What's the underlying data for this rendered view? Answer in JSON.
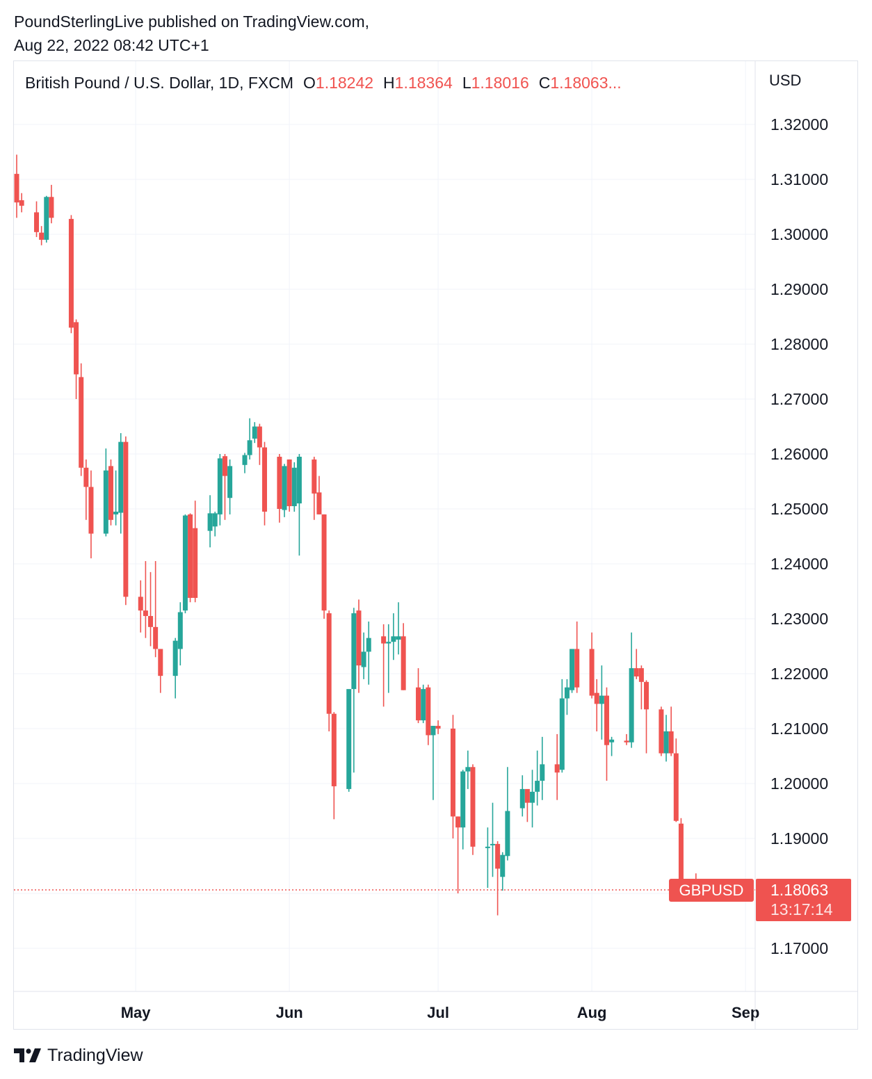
{
  "header": {
    "published_line": "PoundSterlingLive published on TradingView.com,",
    "date_line": "Aug 22, 2022 08:42 UTC+1"
  },
  "legend": {
    "symbol": "British Pound / U.S. Dollar, 1D, FXCM",
    "open_label": "O",
    "open": "1.18242",
    "high_label": "H",
    "high": "1.18364",
    "low_label": "L",
    "low": "1.18016",
    "close_label": "C",
    "close": "1.18063..."
  },
  "price_tag": {
    "ticker": "GBPUSD",
    "price": "1.18063",
    "countdown": "13:17:14"
  },
  "footer": {
    "brand": "TradingView"
  },
  "colors": {
    "up": "#26a69a",
    "down": "#ef5350",
    "grid": "#f0f3fa",
    "text": "#131722"
  },
  "chart_data": {
    "type": "candlestick",
    "y_axis_unit": "USD",
    "y_ticks": [
      "1.32000",
      "1.31000",
      "1.30000",
      "1.29000",
      "1.28000",
      "1.27000",
      "1.26000",
      "1.25000",
      "1.24000",
      "1.23000",
      "1.22000",
      "1.21000",
      "1.20000",
      "1.19000",
      "1.17000"
    ],
    "y_tick_values": [
      1.32,
      1.31,
      1.3,
      1.29,
      1.28,
      1.27,
      1.26,
      1.25,
      1.24,
      1.23,
      1.22,
      1.21,
      1.2,
      1.19,
      1.17
    ],
    "x_ticks": [
      "May",
      "Jun",
      "Jul",
      "Aug",
      "Sep"
    ],
    "x_tick_dates": [
      "2022-05-01",
      "2022-06-01",
      "2022-07-01",
      "2022-08-01",
      "2022-09-01"
    ],
    "ylim": [
      1.1615,
      1.3305
    ],
    "xlim": [
      "2022-04-06",
      "2022-09-07"
    ],
    "last_price": 1.18063,
    "grid": true,
    "candles": [
      {
        "d": "2022-04-07",
        "o": 1.311,
        "h": 1.3145,
        "l": 1.303,
        "c": 1.3058
      },
      {
        "d": "2022-04-08",
        "o": 1.3062,
        "h": 1.3075,
        "l": 1.304,
        "c": 1.3052
      },
      {
        "d": "2022-04-11",
        "o": 1.304,
        "h": 1.306,
        "l": 1.2995,
        "c": 1.3004
      },
      {
        "d": "2022-04-12",
        "o": 1.3003,
        "h": 1.3015,
        "l": 1.298,
        "c": 1.299
      },
      {
        "d": "2022-04-13",
        "o": 1.299,
        "h": 1.307,
        "l": 1.2985,
        "c": 1.3068
      },
      {
        "d": "2022-04-14",
        "o": 1.3068,
        "h": 1.309,
        "l": 1.302,
        "c": 1.303
      },
      {
        "d": "2022-04-18",
        "o": 1.3028,
        "h": 1.3035,
        "l": 1.282,
        "c": 1.283
      },
      {
        "d": "2022-04-19",
        "o": 1.284,
        "h": 1.2845,
        "l": 1.27,
        "c": 1.2745
      },
      {
        "d": "2022-04-20",
        "o": 1.274,
        "h": 1.2765,
        "l": 1.256,
        "c": 1.2575
      },
      {
        "d": "2022-04-21",
        "o": 1.2575,
        "h": 1.259,
        "l": 1.248,
        "c": 1.254
      },
      {
        "d": "2022-04-22",
        "o": 1.254,
        "h": 1.257,
        "l": 1.241,
        "c": 1.2455
      },
      {
        "d": "2022-04-25",
        "o": 1.2455,
        "h": 1.261,
        "l": 1.245,
        "c": 1.257
      },
      {
        "d": "2022-04-26",
        "o": 1.2578,
        "h": 1.259,
        "l": 1.247,
        "c": 1.248
      },
      {
        "d": "2022-04-27",
        "o": 1.249,
        "h": 1.257,
        "l": 1.247,
        "c": 1.2495
      },
      {
        "d": "2022-04-28",
        "o": 1.2493,
        "h": 1.2638,
        "l": 1.2455,
        "c": 1.2622
      },
      {
        "d": "2022-04-29",
        "o": 1.2622,
        "h": 1.2632,
        "l": 1.2325,
        "c": 1.234
      },
      {
        "d": "2022-05-02",
        "o": 1.234,
        "h": 1.237,
        "l": 1.2275,
        "c": 1.2315
      },
      {
        "d": "2022-05-03",
        "o": 1.2315,
        "h": 1.2405,
        "l": 1.2265,
        "c": 1.2305
      },
      {
        "d": "2022-05-04",
        "o": 1.2305,
        "h": 1.2385,
        "l": 1.225,
        "c": 1.2285
      },
      {
        "d": "2022-05-05",
        "o": 1.2285,
        "h": 1.2405,
        "l": 1.223,
        "c": 1.2245
      },
      {
        "d": "2022-05-06",
        "o": 1.2245,
        "h": 1.2245,
        "l": 1.2165,
        "c": 1.2196
      },
      {
        "d": "2022-05-09",
        "o": 1.2196,
        "h": 1.2265,
        "l": 1.2155,
        "c": 1.226
      },
      {
        "d": "2022-05-10",
        "o": 1.2245,
        "h": 1.233,
        "l": 1.2215,
        "c": 1.2312
      },
      {
        "d": "2022-05-11",
        "o": 1.2315,
        "h": 1.249,
        "l": 1.231,
        "c": 1.2488
      },
      {
        "d": "2022-05-12",
        "o": 1.249,
        "h": 1.2492,
        "l": 1.233,
        "c": 1.2338
      },
      {
        "d": "2022-05-13",
        "o": 1.2465,
        "h": 1.2515,
        "l": 1.233,
        "c": 1.2338
      },
      {
        "d": "2022-05-16",
        "o": 1.246,
        "h": 1.2525,
        "l": 1.243,
        "c": 1.2492
      },
      {
        "d": "2022-05-17",
        "o": 1.2468,
        "h": 1.2495,
        "l": 1.245,
        "c": 1.2492
      },
      {
        "d": "2022-05-18",
        "o": 1.249,
        "h": 1.26,
        "l": 1.247,
        "c": 1.2592
      },
      {
        "d": "2022-05-19",
        "o": 1.2596,
        "h": 1.26,
        "l": 1.248,
        "c": 1.256
      },
      {
        "d": "2022-05-20",
        "o": 1.252,
        "h": 1.259,
        "l": 1.249,
        "c": 1.2578
      },
      {
        "d": "2022-05-23",
        "o": 1.258,
        "h": 1.2602,
        "l": 1.2565,
        "c": 1.2598
      },
      {
        "d": "2022-05-24",
        "o": 1.2598,
        "h": 1.2665,
        "l": 1.259,
        "c": 1.2625
      },
      {
        "d": "2022-05-25",
        "o": 1.2628,
        "h": 1.2658,
        "l": 1.262,
        "c": 1.265
      },
      {
        "d": "2022-05-26",
        "o": 1.265,
        "h": 1.2655,
        "l": 1.258,
        "c": 1.2612
      },
      {
        "d": "2022-05-27",
        "o": 1.2612,
        "h": 1.2622,
        "l": 1.247,
        "c": 1.2495
      },
      {
        "d": "2022-05-30",
        "o": 1.2595,
        "h": 1.26,
        "l": 1.2475,
        "c": 1.25
      },
      {
        "d": "2022-05-31",
        "o": 1.2498,
        "h": 1.2582,
        "l": 1.2485,
        "c": 1.2578
      },
      {
        "d": "2022-06-01",
        "o": 1.259,
        "h": 1.259,
        "l": 1.2495,
        "c": 1.2505
      },
      {
        "d": "2022-06-02",
        "o": 1.2505,
        "h": 1.2585,
        "l": 1.2495,
        "c": 1.2575
      },
      {
        "d": "2022-06-03",
        "o": 1.251,
        "h": 1.26,
        "l": 1.2415,
        "c": 1.2595
      },
      {
        "d": "2022-06-06",
        "o": 1.259,
        "h": 1.2595,
        "l": 1.248,
        "c": 1.2528
      },
      {
        "d": "2022-06-07",
        "o": 1.253,
        "h": 1.256,
        "l": 1.249,
        "c": 1.249
      },
      {
        "d": "2022-06-08",
        "o": 1.249,
        "h": 1.249,
        "l": 1.23,
        "c": 1.2315
      },
      {
        "d": "2022-06-09",
        "o": 1.231,
        "h": 1.2315,
        "l": 1.2095,
        "c": 1.2127
      },
      {
        "d": "2022-06-10",
        "o": 1.2127,
        "h": 1.213,
        "l": 1.1935,
        "c": 1.1995
      },
      {
        "d": "2022-06-13",
        "o": 1.199,
        "h": 1.2165,
        "l": 1.1985,
        "c": 1.2172
      },
      {
        "d": "2022-06-14",
        "o": 1.2172,
        "h": 1.232,
        "l": 1.202,
        "c": 1.231
      },
      {
        "d": "2022-06-15",
        "o": 1.2315,
        "h": 1.2335,
        "l": 1.2165,
        "c": 1.2215
      },
      {
        "d": "2022-06-16",
        "o": 1.2212,
        "h": 1.2275,
        "l": 1.219,
        "c": 1.224
      },
      {
        "d": "2022-06-17",
        "o": 1.224,
        "h": 1.2295,
        "l": 1.218,
        "c": 1.2265
      },
      {
        "d": "2022-06-20",
        "o": 1.2268,
        "h": 1.229,
        "l": 1.214,
        "c": 1.2255
      },
      {
        "d": "2022-06-21",
        "o": 1.2255,
        "h": 1.229,
        "l": 1.2165,
        "c": 1.2258
      },
      {
        "d": "2022-06-22",
        "o": 1.2258,
        "h": 1.231,
        "l": 1.2225,
        "c": 1.2268
      },
      {
        "d": "2022-06-23",
        "o": 1.2262,
        "h": 1.233,
        "l": 1.2235,
        "c": 1.2268
      },
      {
        "d": "2022-06-24",
        "o": 1.2268,
        "h": 1.2292,
        "l": 1.217,
        "c": 1.217
      },
      {
        "d": "2022-06-27",
        "o": 1.2175,
        "h": 1.221,
        "l": 1.211,
        "c": 1.2115
      },
      {
        "d": "2022-06-28",
        "o": 1.2115,
        "h": 1.218,
        "l": 1.211,
        "c": 1.2172
      },
      {
        "d": "2022-06-29",
        "o": 1.2175,
        "h": 1.218,
        "l": 1.207,
        "c": 1.2088
      },
      {
        "d": "2022-06-30",
        "o": 1.2088,
        "h": 1.2105,
        "l": 1.197,
        "c": 1.2105
      },
      {
        "d": "2022-07-01",
        "o": 1.2105,
        "h": 1.2115,
        "l": 1.209,
        "c": 1.21
      },
      {
        "d": "2022-07-04",
        "o": 1.21,
        "h": 1.2125,
        "l": 1.19,
        "c": 1.194
      },
      {
        "d": "2022-07-05",
        "o": 1.194,
        "h": 1.194,
        "l": 1.18,
        "c": 1.192
      },
      {
        "d": "2022-07-06",
        "o": 1.192,
        "h": 1.2025,
        "l": 1.188,
        "c": 1.2022
      },
      {
        "d": "2022-07-07",
        "o": 1.2022,
        "h": 1.206,
        "l": 1.199,
        "c": 1.203
      },
      {
        "d": "2022-07-08",
        "o": 1.203,
        "h": 1.2035,
        "l": 1.187,
        "c": 1.1885
      },
      {
        "d": "2022-07-11",
        "o": 1.1885,
        "h": 1.192,
        "l": 1.181,
        "c": 1.1885
      },
      {
        "d": "2022-07-12",
        "o": 1.1888,
        "h": 1.1965,
        "l": 1.183,
        "c": 1.189
      },
      {
        "d": "2022-07-13",
        "o": 1.189,
        "h": 1.1895,
        "l": 1.176,
        "c": 1.1845
      },
      {
        "d": "2022-07-14",
        "o": 1.183,
        "h": 1.1875,
        "l": 1.1805,
        "c": 1.187
      },
      {
        "d": "2022-07-15",
        "o": 1.1868,
        "h": 1.203,
        "l": 1.186,
        "c": 1.195
      },
      {
        "d": "2022-07-18",
        "o": 1.1955,
        "h": 1.2015,
        "l": 1.194,
        "c": 1.199
      },
      {
        "d": "2022-07-19",
        "o": 1.199,
        "h": 1.1985,
        "l": 1.193,
        "c": 1.1965
      },
      {
        "d": "2022-07-20",
        "o": 1.1965,
        "h": 1.2025,
        "l": 1.192,
        "c": 1.1985
      },
      {
        "d": "2022-07-21",
        "o": 1.1985,
        "h": 1.206,
        "l": 1.196,
        "c": 1.2005
      },
      {
        "d": "2022-07-22",
        "o": 1.2005,
        "h": 1.2085,
        "l": 1.197,
        "c": 1.2035
      },
      {
        "d": "2022-07-25",
        "o": 1.2035,
        "h": 1.209,
        "l": 1.197,
        "c": 1.202
      },
      {
        "d": "2022-07-26",
        "o": 1.2025,
        "h": 1.219,
        "l": 1.202,
        "c": 1.2155
      },
      {
        "d": "2022-07-27",
        "o": 1.2155,
        "h": 1.219,
        "l": 1.2125,
        "c": 1.2175
      },
      {
        "d": "2022-07-28",
        "o": 1.217,
        "h": 1.2245,
        "l": 1.2165,
        "c": 1.2245
      },
      {
        "d": "2022-07-29",
        "o": 1.2245,
        "h": 1.2295,
        "l": 1.2165,
        "c": 1.2175
      },
      {
        "d": "2022-08-01",
        "o": 1.2245,
        "h": 1.2275,
        "l": 1.2155,
        "c": 1.216
      },
      {
        "d": "2022-08-02",
        "o": 1.2165,
        "h": 1.219,
        "l": 1.2095,
        "c": 1.2145
      },
      {
        "d": "2022-08-03",
        "o": 1.2145,
        "h": 1.2215,
        "l": 1.208,
        "c": 1.216
      },
      {
        "d": "2022-08-04",
        "o": 1.216,
        "h": 1.2175,
        "l": 1.2005,
        "c": 1.207
      },
      {
        "d": "2022-08-05",
        "o": 1.2075,
        "h": 1.2085,
        "l": 1.205,
        "c": 1.208
      },
      {
        "d": "2022-08-08",
        "o": 1.2078,
        "h": 1.209,
        "l": 1.207,
        "c": 1.2075
      },
      {
        "d": "2022-08-09",
        "o": 1.2075,
        "h": 1.2275,
        "l": 1.2065,
        "c": 1.221
      },
      {
        "d": "2022-08-10",
        "o": 1.221,
        "h": 1.2245,
        "l": 1.219,
        "c": 1.2195
      },
      {
        "d": "2022-08-11",
        "o": 1.221,
        "h": 1.2215,
        "l": 1.2135,
        "c": 1.2185
      },
      {
        "d": "2022-08-12",
        "o": 1.2185,
        "h": 1.2188,
        "l": 1.2055,
        "c": 1.2135
      },
      {
        "d": "2022-08-15",
        "o": 1.2135,
        "h": 1.214,
        "l": 1.205,
        "c": 1.2055
      },
      {
        "d": "2022-08-16",
        "o": 1.2055,
        "h": 1.2125,
        "l": 1.204,
        "c": 1.2095
      },
      {
        "d": "2022-08-17",
        "o": 1.2095,
        "h": 1.214,
        "l": 1.205,
        "c": 1.2055
      },
      {
        "d": "2022-08-18",
        "o": 1.2055,
        "h": 1.2082,
        "l": 1.193,
        "c": 1.1932
      },
      {
        "d": "2022-08-19",
        "o": 1.1927,
        "h": 1.1937,
        "l": 1.1795,
        "c": 1.1816
      },
      {
        "d": "2022-08-22",
        "o": 1.18242,
        "h": 1.18364,
        "l": 1.18016,
        "c": 1.18063
      }
    ]
  }
}
